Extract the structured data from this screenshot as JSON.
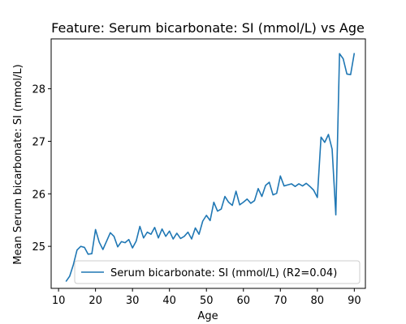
{
  "chart_data": {
    "type": "line",
    "title": "Feature: Serum bicarbonate:  SI (mmol/L) vs Age",
    "xlabel": "Age",
    "ylabel": "Mean Serum bicarbonate:  SI (mmol/L)",
    "xlim": [
      8,
      93
    ],
    "ylim": [
      24.2,
      28.95
    ],
    "xticks": [
      10,
      20,
      30,
      40,
      50,
      60,
      70,
      80,
      90
    ],
    "yticks": [
      25,
      26,
      27,
      28
    ],
    "grid": false,
    "legend": {
      "placement": "bottom-right"
    },
    "series": [
      {
        "name": "Serum bicarbonate:  SI (mmol/L) (R2=0.04)",
        "color": "#1f77b4",
        "x": [
          12,
          13,
          14,
          15,
          16,
          17,
          18,
          19,
          20,
          21,
          22,
          23,
          24,
          25,
          26,
          27,
          28,
          29,
          30,
          31,
          32,
          33,
          34,
          35,
          36,
          37,
          38,
          39,
          40,
          41,
          42,
          43,
          44,
          45,
          46,
          47,
          48,
          49,
          50,
          51,
          52,
          53,
          54,
          55,
          56,
          57,
          58,
          59,
          60,
          61,
          62,
          63,
          64,
          65,
          66,
          67,
          68,
          69,
          70,
          71,
          72,
          73,
          74,
          75,
          76,
          77,
          78,
          79,
          80,
          81,
          82,
          83,
          84,
          85,
          86,
          87,
          88,
          89,
          90
        ],
        "y": [
          24.33,
          24.43,
          24.65,
          24.93,
          25.0,
          24.98,
          24.85,
          24.86,
          25.32,
          25.08,
          24.94,
          25.1,
          25.26,
          25.19,
          24.99,
          25.09,
          25.07,
          25.13,
          24.97,
          25.1,
          25.38,
          25.16,
          25.27,
          25.23,
          25.36,
          25.16,
          25.33,
          25.19,
          25.29,
          25.14,
          25.25,
          25.15,
          25.19,
          25.27,
          25.14,
          25.35,
          25.23,
          25.48,
          25.59,
          25.49,
          25.84,
          25.67,
          25.71,
          25.95,
          25.84,
          25.78,
          26.05,
          25.79,
          25.84,
          25.9,
          25.82,
          25.87,
          26.1,
          25.95,
          26.16,
          26.22,
          25.98,
          26.01,
          26.34,
          26.15,
          26.17,
          26.19,
          26.14,
          26.19,
          26.15,
          26.2,
          26.14,
          26.07,
          25.93,
          27.08,
          26.98,
          27.13,
          26.85,
          25.6,
          28.67,
          28.57,
          28.28,
          28.27,
          28.68
        ]
      }
    ]
  }
}
